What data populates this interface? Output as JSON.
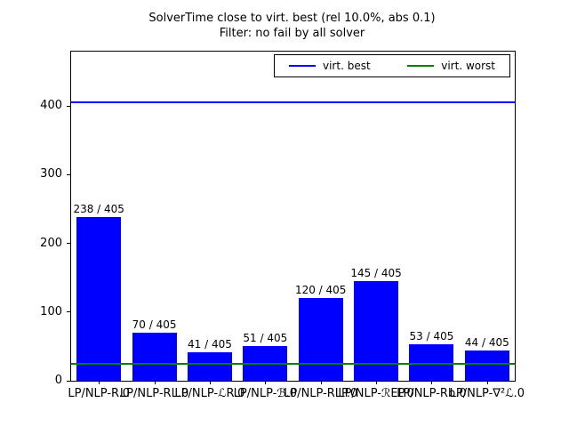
{
  "title": {
    "line1": "SolverTime close to virt. best (rel 10.0%, abs 0.1)",
    "line2": "Filter: no fail by all solver"
  },
  "legend": {
    "entries": [
      {
        "label": "virt. best",
        "color": "#0000ff"
      },
      {
        "label": "virt. worst",
        "color": "#008000"
      }
    ]
  },
  "chart_data": {
    "type": "bar",
    "title": "SolverTime close to virt. best (rel 10.0%, abs 0.1)\nFilter: no fail by all solver",
    "categories": [
      "LP/NLP-R.0",
      "LP/NLP-RL.0",
      "LP/NLP-ℒR.0",
      "LP/NLP-ℬ.0",
      "LP/NLP-RLP.0",
      "LP/NLP-ℛEP.0",
      "LP/NLP-Rb.0",
      "LP/NLP-∇²ℒ.0"
    ],
    "values": [
      238,
      70,
      41,
      51,
      120,
      145,
      53,
      44
    ],
    "bar_labels": [
      "238 / 405",
      "70 / 405",
      "41 / 405",
      "51 / 405",
      "120 / 405",
      "145 / 405",
      "53 / 405",
      "44 / 405"
    ],
    "total_instances": 405,
    "bar_color": "#0000ff",
    "hlines": [
      {
        "name": "virt. best",
        "value": 405,
        "color": "#0000ff",
        "thickness": 2
      },
      {
        "name": "virt. worst",
        "value": 25,
        "color": "#008000",
        "thickness": 2
      }
    ],
    "xlabel": "",
    "ylabel": "",
    "ylim": [
      0,
      479
    ],
    "yticks": [
      0,
      100,
      200,
      300,
      400
    ],
    "grid": false,
    "legend_position": "upper right inside"
  }
}
